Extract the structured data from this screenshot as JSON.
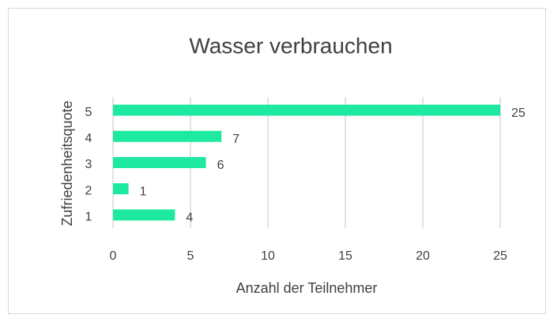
{
  "chart_data": {
    "type": "bar",
    "orientation": "horizontal",
    "title": "Wasser verbrauchen",
    "x_label": "Anzahl der Teilnehmer",
    "y_label": "Zufriedenheitsquote",
    "categories": [
      "1",
      "2",
      "3",
      "4",
      "5"
    ],
    "values": [
      4,
      1,
      6,
      7,
      25
    ],
    "color": "#1de9a0",
    "xlim": [
      0,
      25
    ],
    "xticks": [
      0,
      5,
      10,
      15,
      20,
      25
    ],
    "grid": true
  }
}
